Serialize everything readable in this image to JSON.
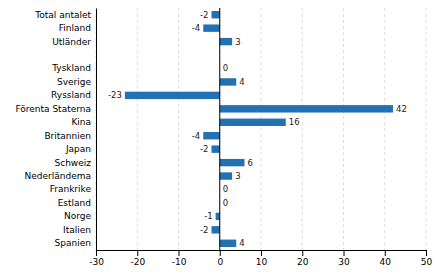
{
  "chart_data": {
    "type": "bar",
    "orientation": "horizontal",
    "categories": [
      "Total antalet",
      "Finland",
      "Utländer",
      null,
      "Tyskland",
      "Sverige",
      "Ryssland",
      "Förenta Staterna",
      "Kina",
      "Britannien",
      "Japan",
      "Schweiz",
      "Nederländema",
      "Frankrike",
      "Estland",
      "Norge",
      "Italien",
      "Spanien"
    ],
    "values": [
      -2,
      -4,
      3,
      0,
      0,
      4,
      -23,
      42,
      16,
      -4,
      -2,
      6,
      3,
      0,
      0,
      -1,
      -2,
      4
    ],
    "value_labels": [
      "-2",
      "-4",
      "3",
      null,
      "0",
      "4",
      "-23",
      "42",
      "16",
      "-4",
      "-2",
      "6",
      "3",
      "0",
      "0",
      "-1",
      "-2",
      "4"
    ],
    "data_labels": true,
    "color": "#2271b3",
    "xlim": [
      -30,
      50
    ],
    "xticks": [
      -30,
      -20,
      -10,
      0,
      10,
      20,
      30,
      40,
      50
    ],
    "grid": true
  }
}
